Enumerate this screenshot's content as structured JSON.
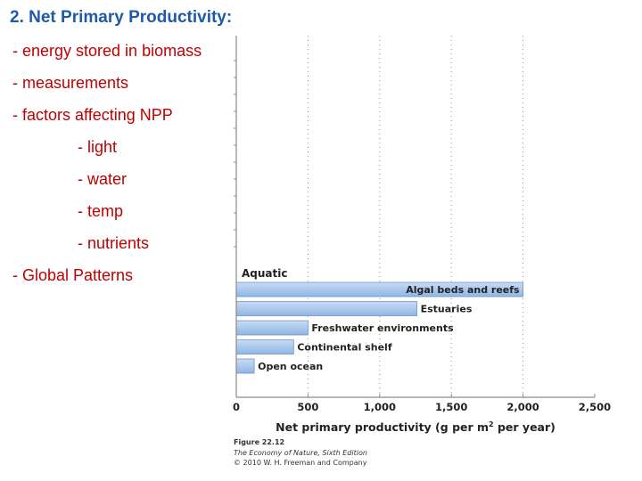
{
  "slide": {
    "title": "2. Net Primary Productivity:",
    "bullets": [
      {
        "text": "- energy stored in biomass",
        "level": 1
      },
      {
        "text": "- measurements",
        "level": 1
      },
      {
        "text": "- factors affecting NPP",
        "level": 1
      },
      {
        "text": "- light",
        "level": 2
      },
      {
        "text": "- water",
        "level": 2
      },
      {
        "text": "- temp",
        "level": 2
      },
      {
        "text": "- nutrients",
        "level": 2
      },
      {
        "text": "- Global Patterns",
        "level": 1
      }
    ]
  },
  "chart_data": {
    "type": "bar",
    "orientation": "horizontal",
    "group_label": "Aquatic",
    "categories": [
      "Algal beds and reefs",
      "Estuaries",
      "Freshwater environments",
      "Continental shelf",
      "Open ocean"
    ],
    "values": [
      2000,
      1260,
      500,
      400,
      125
    ],
    "xlabel_main": "Net primary productivity (g per m",
    "xlabel_sup": "2",
    "xlabel_end": " per year)",
    "xticks": [
      "0",
      "500",
      "1,000",
      "1,500",
      "2,000",
      "2,500"
    ],
    "xlim": [
      0,
      2500
    ],
    "grid": "dotted vertical",
    "bar_color": "#a9c6ea"
  },
  "figure_caption": {
    "line1": "Figure 22.12",
    "line2": "The Economy of Nature, Sixth Edition",
    "line3": "© 2010 W. H. Freeman and Company"
  }
}
